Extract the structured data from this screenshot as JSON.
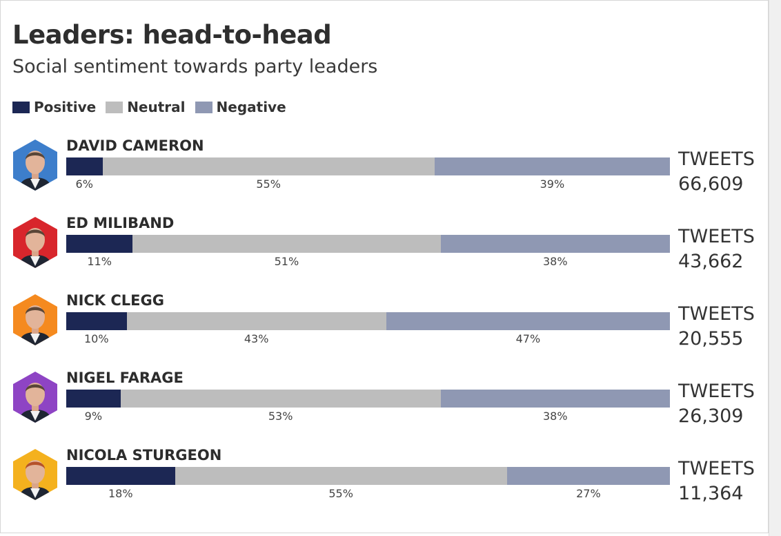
{
  "colors": {
    "positive": "#1c2754",
    "neutral": "#bdbdbd",
    "negative": "#8f98b3"
  },
  "header": {
    "title": "Leaders: head-to-head",
    "subtitle": "Social sentiment towards party leaders"
  },
  "legend": [
    {
      "label": "Positive",
      "color": "#1c2754"
    },
    {
      "label": "Neutral",
      "color": "#bdbdbd"
    },
    {
      "label": "Negative",
      "color": "#8f98b3"
    }
  ],
  "chart_data": {
    "type": "bar",
    "stacked": true,
    "orientation": "horizontal",
    "title": "Leaders: head-to-head",
    "subtitle": "Social sentiment towards party leaders",
    "categories": [
      "DAVID CAMERON",
      "ED MILIBAND",
      "NICK CLEGG",
      "NIGEL FARAGE",
      "NICOLA STURGEON"
    ],
    "series": [
      {
        "name": "Positive",
        "values": [
          6,
          11,
          10,
          9,
          18
        ]
      },
      {
        "name": "Neutral",
        "values": [
          55,
          51,
          43,
          53,
          55
        ]
      },
      {
        "name": "Negative",
        "values": [
          39,
          38,
          47,
          38,
          27
        ]
      }
    ],
    "value_labels": [
      [
        "6%",
        "55%",
        "39%"
      ],
      [
        "11%",
        "51%",
        "38%"
      ],
      [
        "10%",
        "43%",
        "47%"
      ],
      [
        "9%",
        "53%",
        "38%"
      ],
      [
        "18%",
        "55%",
        "27%"
      ]
    ],
    "tweets_label": "TWEETS",
    "tweets": [
      "66,609",
      "43,662",
      "20,555",
      "26,309",
      "11,364"
    ],
    "avatar_colors": [
      "#3d7ecb",
      "#d8262c",
      "#f58a1f",
      "#8e44c4",
      "#f4b11e"
    ],
    "legend_position": "top-left",
    "grid": false
  }
}
